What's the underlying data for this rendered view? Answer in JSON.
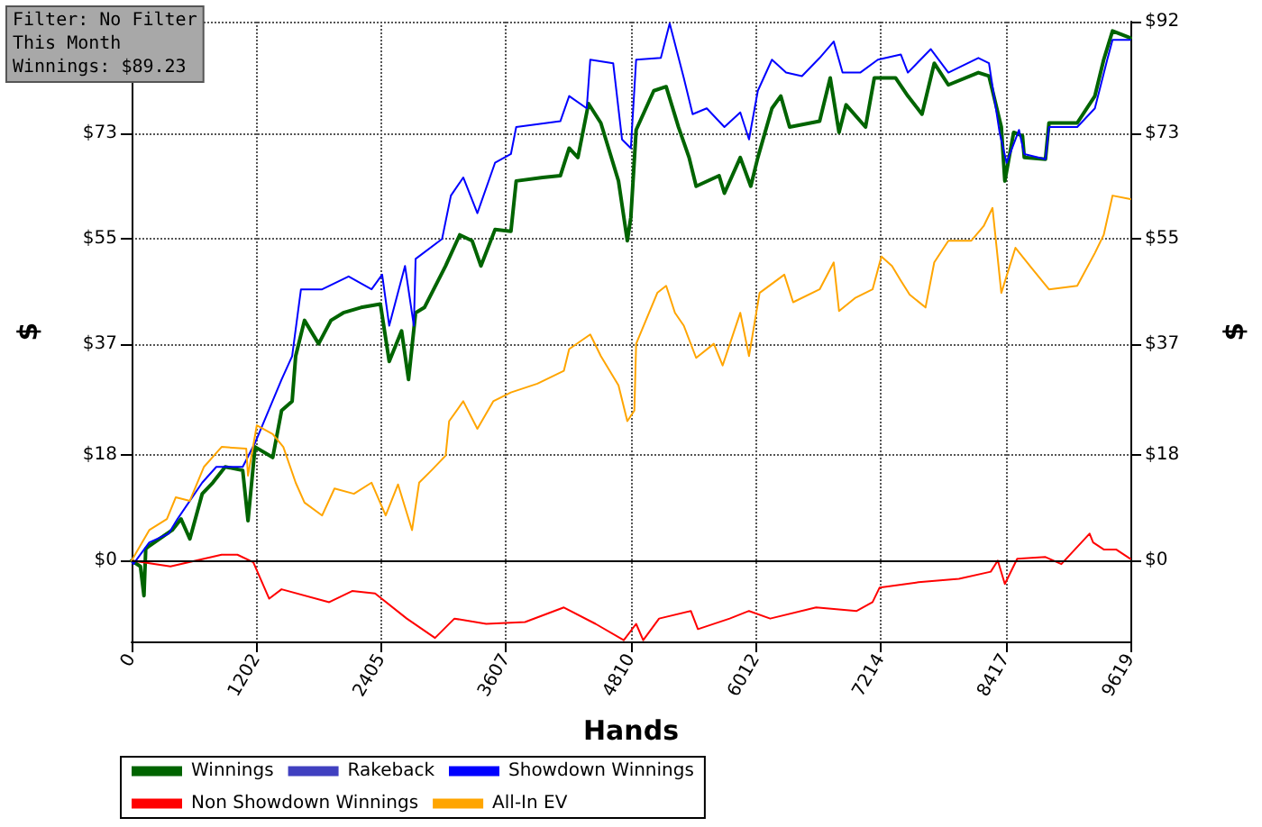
{
  "chart_data": {
    "type": "line",
    "xlabel": "Hands",
    "ylabel": "$",
    "y2label": "$",
    "annotations": [
      "Filter: No Filter",
      "This Month",
      "Winnings: $89.23"
    ],
    "xlim": [
      0,
      9619
    ],
    "xticks": [
      0,
      1202,
      2405,
      3607,
      4810,
      6012,
      7214,
      8417,
      9619
    ],
    "ylim": [
      -13.8,
      92
    ],
    "yticks": [
      {
        "value": 0,
        "label": "$0"
      },
      {
        "value": 18,
        "label": "$18"
      },
      {
        "value": 37,
        "label": "$37"
      },
      {
        "value": 55,
        "label": "$55"
      },
      {
        "value": 73,
        "label": "$73"
      },
      {
        "value": 92,
        "label": null
      }
    ],
    "y2lim": [
      -13.8,
      92
    ],
    "y2ticks": [
      {
        "value": 0,
        "label": "$0"
      },
      {
        "value": 18,
        "label": "$18"
      },
      {
        "value": 37,
        "label": "$37"
      },
      {
        "value": 55,
        "label": "$55"
      },
      {
        "value": 73,
        "label": "$73"
      },
      {
        "value": 92,
        "label": "$92"
      }
    ],
    "grid": true,
    "legend": "bottom",
    "marker": "none",
    "ref_lines": [
      {
        "axis": "y",
        "value": 0,
        "color": "#000000",
        "line_style": "solid"
      }
    ],
    "series": [
      {
        "name": "Winnings",
        "color": "#006400",
        "x": [
          0,
          85,
          119,
          136,
          170,
          391,
          476,
          561,
          680,
          782,
          901,
          1070,
          1121,
          1189,
          1359,
          1444,
          1546,
          1580,
          1665,
          1801,
          1920,
          2039,
          2209,
          2396,
          2481,
          2600,
          2667,
          2735,
          2820,
          3024,
          3160,
          3279,
          3364,
          3500,
          3653,
          3704,
          3959,
          4129,
          4214,
          4298,
          4400,
          4519,
          4689,
          4774,
          4808,
          4859,
          5029,
          5148,
          5267,
          5369,
          5437,
          5658,
          5709,
          5862,
          5963,
          6031,
          6167,
          6252,
          6337,
          6626,
          6728,
          6813,
          6881,
          7068,
          7153,
          7357,
          7476,
          7612,
          7730,
          7866,
          8155,
          8257,
          8376,
          8410,
          8495,
          8580,
          8597,
          8801,
          8835,
          9107,
          9277,
          9362,
          9447,
          9619
        ],
        "values": [
          0,
          -1,
          -6,
          2,
          2.5,
          5.2,
          7.1,
          3.7,
          11.4,
          13.3,
          16,
          15.4,
          6.8,
          19.4,
          17.6,
          25.6,
          27.2,
          34.9,
          41,
          37,
          41,
          42.3,
          43.2,
          43.8,
          34,
          39.2,
          30.9,
          42.3,
          43.2,
          50.3,
          55.6,
          54.6,
          50.3,
          56.5,
          56.2,
          64.8,
          65.4,
          65.7,
          70.4,
          68.8,
          78,
          74.7,
          64.8,
          54.6,
          58.6,
          73.5,
          80.2,
          80.9,
          74,
          68.8,
          63.9,
          65.7,
          62.7,
          68.8,
          63.9,
          68.8,
          77.2,
          79.3,
          74,
          75,
          82.4,
          73.1,
          77.8,
          74,
          82.4,
          82.4,
          79.3,
          76.2,
          84.9,
          81.2,
          83.3,
          82.7,
          74,
          64.8,
          73.1,
          72.5,
          68.8,
          68.5,
          74.7,
          74.7,
          79.3,
          85.5,
          90.4,
          89.2
        ]
      },
      {
        "name": "Rakeback",
        "color": "#4040c0"
      },
      {
        "name": "Showdown Winnings",
        "color": "#0000ff",
        "x": [
          0,
          17,
          170,
          357,
          442,
          680,
          816,
          1070,
          1189,
          1444,
          1546,
          1631,
          1835,
          2090,
          2311,
          2413,
          2481,
          2633,
          2718,
          2735,
          2990,
          3075,
          3194,
          3330,
          3500,
          3653,
          3704,
          4129,
          4214,
          4383,
          4417,
          4638,
          4723,
          4808,
          4859,
          5097,
          5182,
          5318,
          5403,
          5539,
          5709,
          5862,
          5946,
          6031,
          6167,
          6303,
          6456,
          6626,
          6762,
          6847,
          7017,
          7187,
          7408,
          7476,
          7697,
          7866,
          8155,
          8257,
          8359,
          8427,
          8546,
          8597,
          8801,
          8835,
          9107,
          9277,
          9396,
          9447,
          9619
        ],
        "values": [
          0,
          -0.6,
          3.1,
          4.6,
          7.1,
          13.3,
          16,
          16,
          20.1,
          30.9,
          34.9,
          46.3,
          46.3,
          48.5,
          46.3,
          48.8,
          40.1,
          50.3,
          40.1,
          51.5,
          54.9,
          62.3,
          65.4,
          59.3,
          67.9,
          69.4,
          74,
          75,
          79.3,
          77.2,
          85.5,
          84.9,
          71.9,
          70.4,
          85.5,
          85.8,
          91.7,
          82.4,
          76.2,
          77.2,
          74,
          76.5,
          71.9,
          80.2,
          85.5,
          83.3,
          82.7,
          85.8,
          88.6,
          83.3,
          83.3,
          85.5,
          86.4,
          83.3,
          87.3,
          83.3,
          85.8,
          84.9,
          73.1,
          67.9,
          73.5,
          69.4,
          68.5,
          74,
          74,
          77.2,
          85.5,
          88.9,
          88.9
        ]
      },
      {
        "name": "Non Showdown Winnings",
        "color": "#ff0000",
        "x": [
          0,
          374,
          867,
          1019,
          1172,
          1325,
          1444,
          1903,
          2124,
          2345,
          2650,
          2922,
          3109,
          3415,
          3789,
          4163,
          4468,
          4740,
          4859,
          4927,
          5080,
          5386,
          5454,
          5760,
          5946,
          6150,
          6592,
          6983,
          7136,
          7204,
          7578,
          7968,
          8274,
          8342,
          8410,
          8529,
          8801,
          8954,
          9226,
          9260,
          9362,
          9481,
          9619
        ],
        "values": [
          0,
          -1,
          1,
          1,
          -0.3,
          -6.5,
          -4.9,
          -7.1,
          -5.2,
          -5.6,
          -9.9,
          -13.2,
          -9.9,
          -10.8,
          -10.5,
          -8,
          -10.8,
          -13.6,
          -10.8,
          -13.6,
          -9.9,
          -8.6,
          -11.7,
          -9.9,
          -8.6,
          -9.9,
          -8,
          -8.6,
          -7.1,
          -4.6,
          -3.7,
          -3.1,
          -1.9,
          0,
          -4,
          0.3,
          0.6,
          -0.6,
          4.6,
          3.1,
          1.9,
          1.9,
          0.3
        ]
      },
      {
        "name": "All-In EV",
        "color": "#ffa500",
        "x": [
          0,
          170,
          340,
          425,
          561,
          697,
          867,
          1104,
          1121,
          1206,
          1359,
          1461,
          1580,
          1665,
          1835,
          1954,
          2141,
          2311,
          2447,
          2566,
          2701,
          2769,
          2888,
          3024,
          3058,
          3194,
          3330,
          3483,
          3653,
          3908,
          4163,
          4214,
          4417,
          4519,
          4689,
          4774,
          4842,
          4859,
          5063,
          5148,
          5233,
          5318,
          5437,
          5607,
          5692,
          5862,
          5946,
          6048,
          6286,
          6371,
          6626,
          6762,
          6813,
          6966,
          7136,
          7221,
          7323,
          7408,
          7493,
          7646,
          7730,
          7866,
          8087,
          8206,
          8291,
          8376,
          8512,
          8665,
          8835,
          9107,
          9277,
          9362,
          9447,
          9619
        ],
        "values": [
          0,
          5.2,
          7.1,
          10.8,
          10.2,
          16,
          19.4,
          19.1,
          14.5,
          23.1,
          21.6,
          19.4,
          13.3,
          9.9,
          7.7,
          12.3,
          11.4,
          13.3,
          7.7,
          13,
          5.2,
          13.3,
          15.4,
          17.9,
          23.8,
          27.2,
          22.5,
          27.2,
          28.7,
          30.2,
          32.4,
          36.1,
          38.6,
          34.9,
          29.9,
          23.8,
          25.6,
          37,
          45.7,
          46.9,
          42.3,
          40.1,
          34.6,
          37,
          33.3,
          42.3,
          34.9,
          45.7,
          48.8,
          44.1,
          46.3,
          50.9,
          42.6,
          44.8,
          46.3,
          51.9,
          50.3,
          47.8,
          45.4,
          43.2,
          50.9,
          54.6,
          54.6,
          57.1,
          60.2,
          45.7,
          53.4,
          50,
          46.3,
          46.9,
          52.5,
          55.6,
          62.3,
          61.7
        ]
      }
    ]
  }
}
